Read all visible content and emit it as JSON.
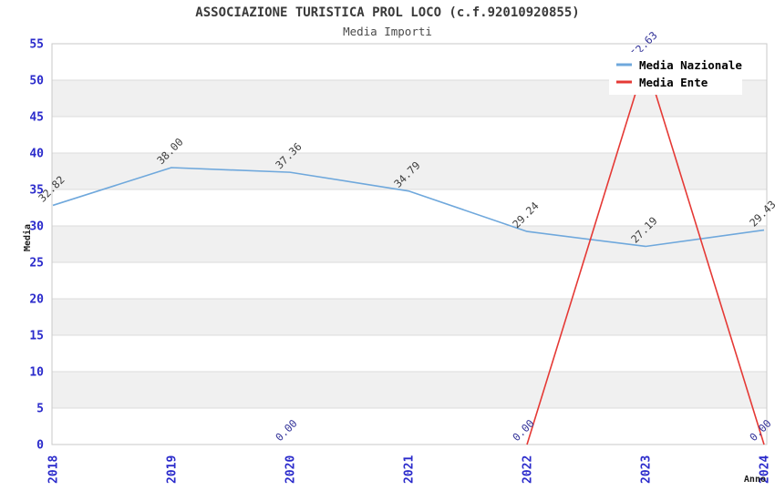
{
  "chart_data": {
    "type": "line",
    "title": "ASSOCIAZIONE TURISTICA PROL LOCO (c.f.92010920855)",
    "subtitle": "Media Importi",
    "xlabel": "Anno",
    "ylabel": "Media",
    "x": [
      "2018",
      "2019",
      "2020",
      "2021",
      "2022",
      "2023",
      "2024"
    ],
    "ylim": [
      0,
      55
    ],
    "ytick_step": 5,
    "grid": true,
    "legend_position": "top-right",
    "series": [
      {
        "name": "Media Nazionale",
        "color": "#6FA8DC",
        "label_color": "#3C3C3C",
        "values": [
          32.82,
          38.0,
          37.36,
          34.79,
          29.24,
          27.19,
          29.43
        ]
      },
      {
        "name": "Media Ente",
        "color": "#E53935",
        "label_color": "#333399",
        "values": [
          null,
          null,
          0.0,
          null,
          0.0,
          52.63,
          0.0
        ]
      }
    ],
    "colors": {
      "tick": "#2B2BCB",
      "grid": "#DBDBDB",
      "border": "#C9C9C9",
      "band": "#F0F0F0",
      "legend_bg": "#FFFFFF",
      "axis_label": "#1A1A1A",
      "title": "#3A3A3A",
      "subtitle": "#4A4A4A"
    }
  }
}
